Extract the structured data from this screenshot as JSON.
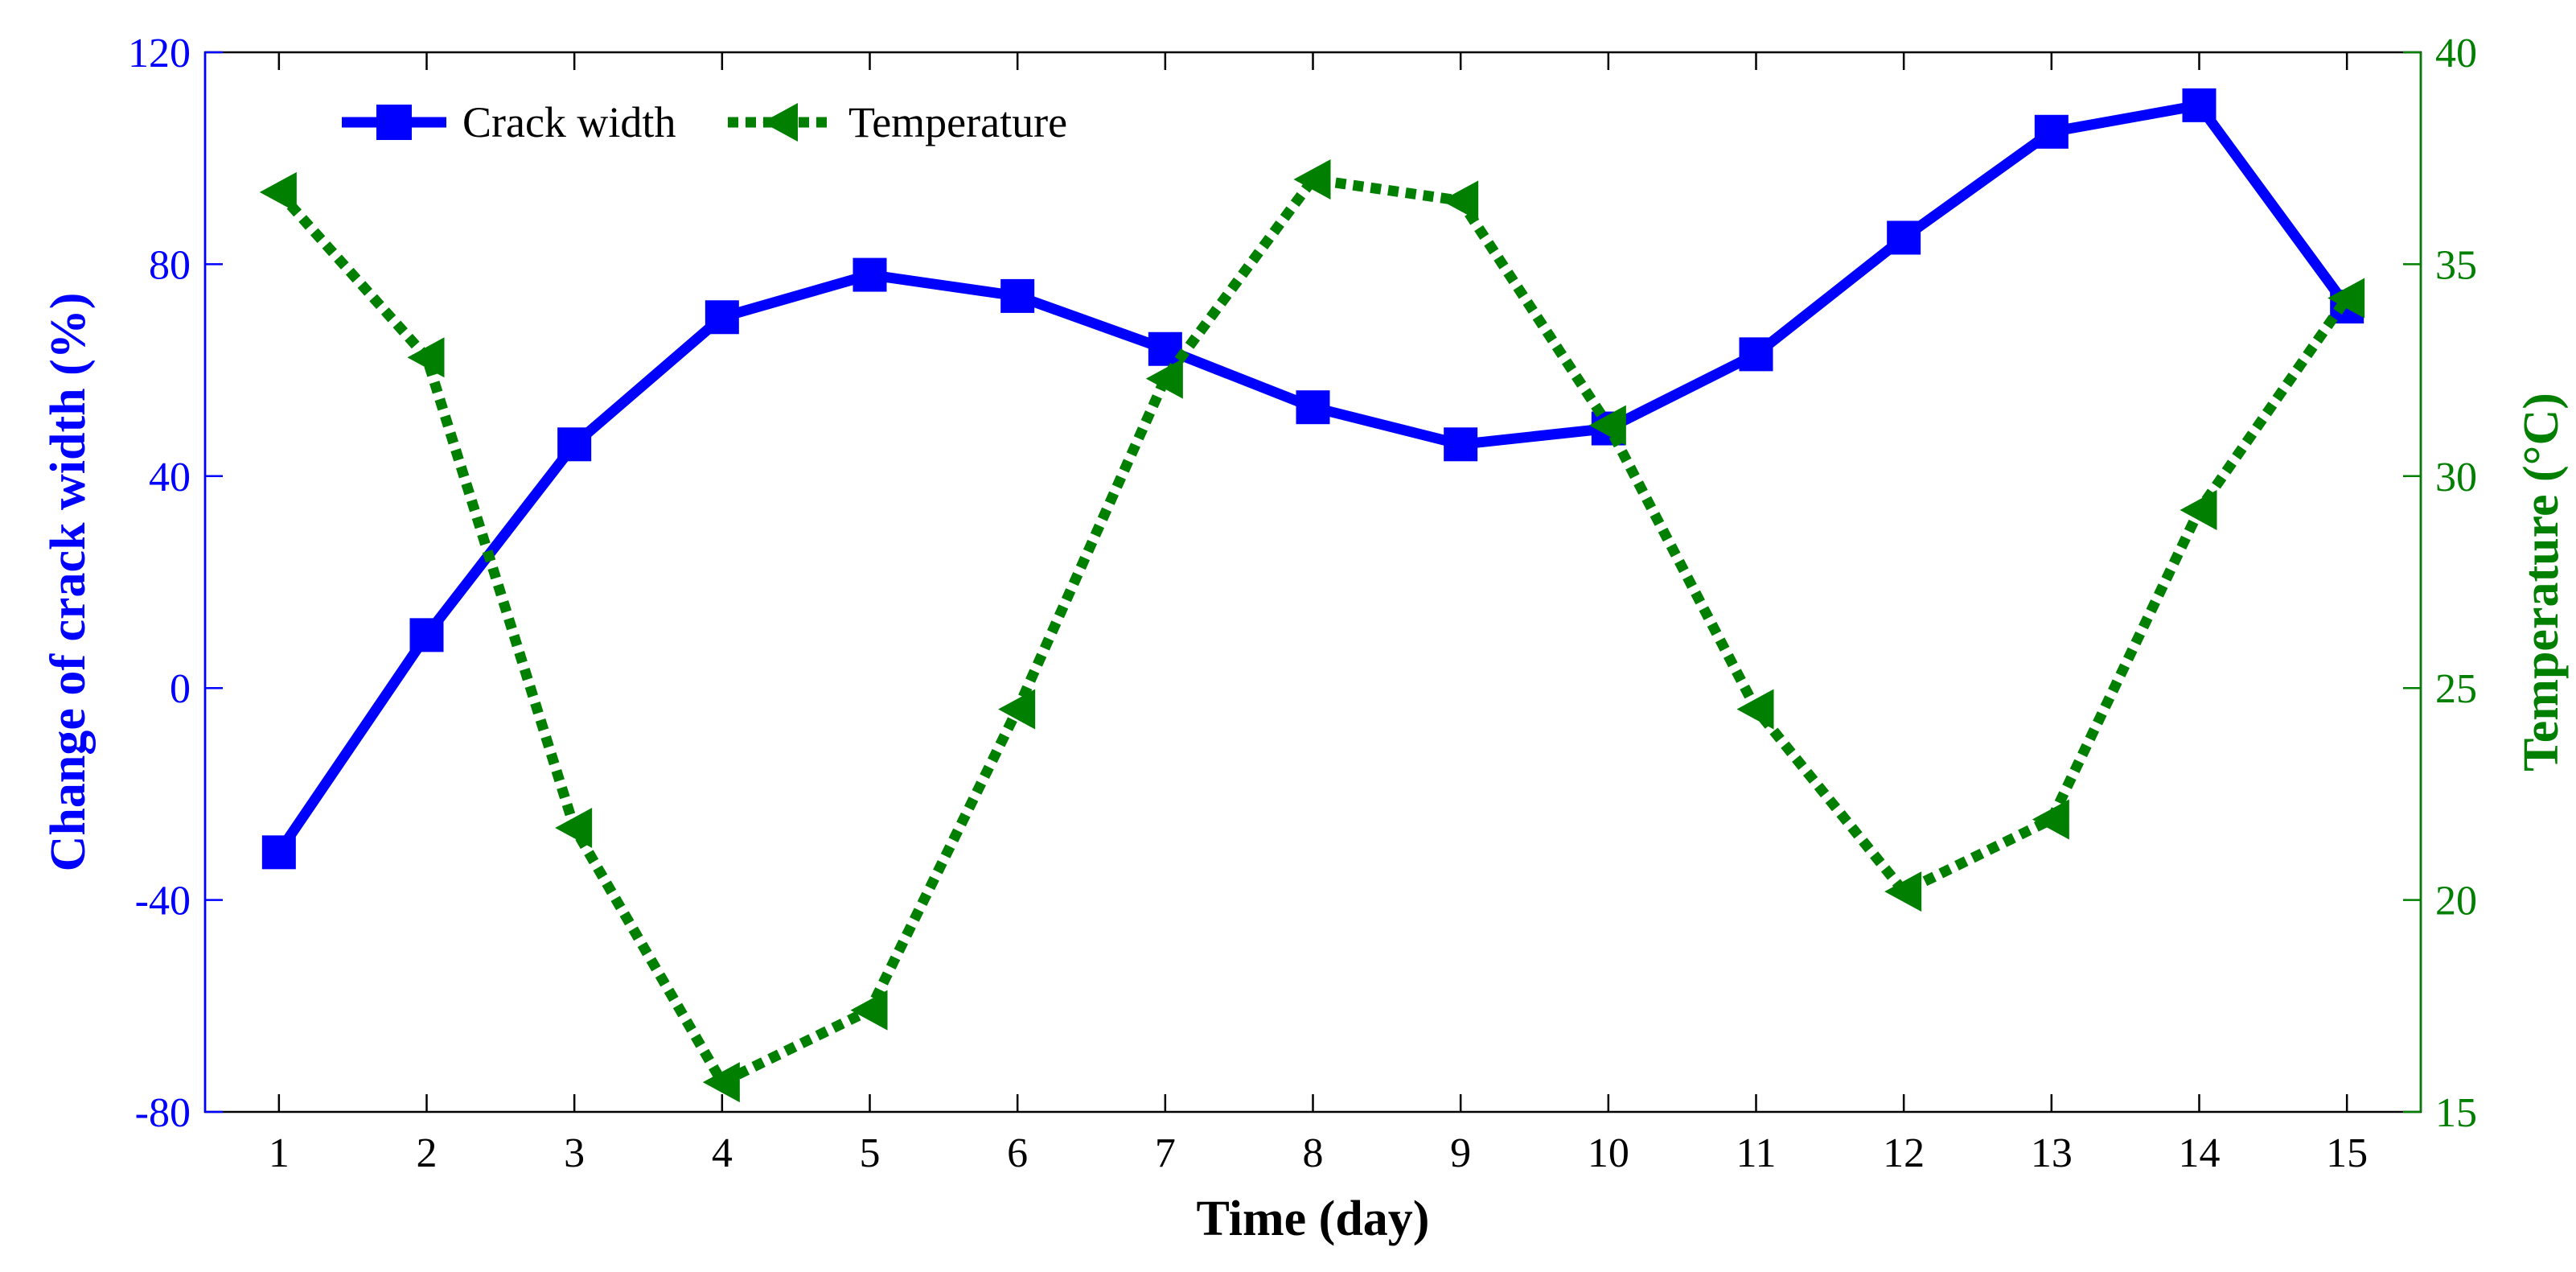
{
  "chart_data": {
    "type": "line",
    "xlabel": "Time (day)",
    "ylabel_left": "Change of crack width (%)",
    "ylabel_right": "Temperature (°C)",
    "x": [
      1,
      2,
      3,
      4,
      5,
      6,
      7,
      8,
      9,
      10,
      11,
      12,
      13,
      14,
      15
    ],
    "x_ticks": [
      "1",
      "2",
      "3",
      "4",
      "5",
      "6",
      "7",
      "8",
      "9",
      "10",
      "11",
      "12",
      "13",
      "14",
      "15"
    ],
    "xlim": [
      0.5,
      15.5
    ],
    "y_left_ticks": [
      "120",
      "80",
      "40",
      "0",
      "-40",
      "-80"
    ],
    "y_left_tick_values": [
      120,
      80,
      40,
      0,
      -40,
      -80
    ],
    "ylim_left": [
      -80,
      120
    ],
    "y_right_ticks": [
      "40",
      "35",
      "30",
      "25",
      "20",
      "15"
    ],
    "y_right_tick_values": [
      40,
      35,
      30,
      25,
      20,
      15
    ],
    "ylim_right": [
      15,
      40
    ],
    "series": [
      {
        "name": "Crack width",
        "axis": "left",
        "color": "#0000ff",
        "marker": "square",
        "line_style": "solid",
        "values": [
          -31,
          10,
          46,
          70,
          78,
          74,
          64,
          53,
          46,
          49,
          63,
          85,
          105,
          110,
          72
        ]
      },
      {
        "name": "Temperature",
        "axis": "right",
        "color": "#007f00",
        "marker": "triangle-left",
        "line_style": "dotted",
        "values": [
          36.7,
          32.8,
          21.7,
          15.7,
          17.4,
          24.5,
          32.3,
          37.0,
          36.5,
          31.2,
          24.5,
          20.2,
          21.9,
          29.2,
          34.2
        ]
      }
    ],
    "legend_position": "top-left"
  },
  "colors": {
    "left_axis": "#0000ff",
    "right_axis": "#007f00",
    "frame": "#000000"
  }
}
